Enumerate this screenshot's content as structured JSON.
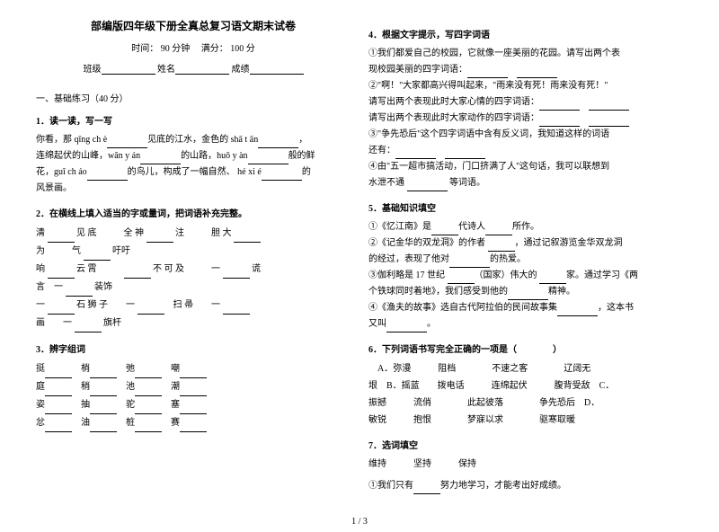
{
  "header": {
    "title": "部编版四年级下册全真总复习语文期末试卷",
    "time_label": "时间：",
    "time_value": "90 分钟",
    "score_label": "满分：",
    "score_value": "100 分",
    "class_label": "班级",
    "name_label": "姓名",
    "grade_label": "成绩"
  },
  "left": {
    "section1": "一、基础练习（40 分）",
    "q1_h": "1．读一读，写一写",
    "q1_body_a": "你看，那 qīng ch è",
    "q1_body_b": "见底的江水，金色的 shā t ān",
    "q1_body_c": "，",
    "q1_body_d": "连绵起伏的山峰，wān y án",
    "q1_body_e": "的山路，huǒ y àn",
    "q1_body_f": "般的鲜",
    "q1_body_g": "花，guī ch áo",
    "q1_body_h": "的鸟儿，构成了一幅自然、 hé xi é",
    "q1_body_i": "的",
    "q1_body_j": "风景画。",
    "q2_h": "2．在横线上填入适当的字或量词，把词语补充完整。",
    "q2_r1_a": "清",
    "q2_r1_b": "见 底",
    "q2_r1_c": "全 神",
    "q2_r1_d": "注",
    "q2_r1_e": "胆 大",
    "q2_r2_a": "为",
    "q2_r2_b": "气",
    "q2_r2_c": "吁吁",
    "q2_r3_a": "响",
    "q2_r3_b": "云 霄",
    "q2_r3_c": "不 可 及",
    "q2_r3_d": "一",
    "q2_r3_e": "谎",
    "q2_r4_a": "言",
    "q2_r4_b": "一",
    "q2_r4_c": "装饰",
    "q2_r5_a": "一",
    "q2_r5_b": "石 狮 子",
    "q2_r5_c": "一",
    "q2_r5_d": "扫 帚",
    "q2_r5_e": "一",
    "q2_r6_a": "画",
    "q2_r6_b": "一",
    "q2_r6_c": "旗杆",
    "q3_h": "3．辨字组词",
    "q3_r1": "挺",
    "q3_r1b": "梢",
    "q3_r1c": "弛",
    "q3_r1d": "嘲",
    "q3_r2": "庭",
    "q3_r2b": "稍",
    "q3_r2c": "池",
    "q3_r2d": "潮",
    "q3_r3": "姿",
    "q3_r3b": "抽",
    "q3_r3c": "驼",
    "q3_r3d": "塞",
    "q3_r4": "忿",
    "q3_r4b": "油",
    "q3_r4c": "桩",
    "q3_r4d": "赛"
  },
  "right": {
    "q4_h": "4．根据文字提示，写四字词语",
    "q4_1a": "①我们都爱自己的校园，它就像一座美丽的花园。请写出两个表",
    "q4_1b": "现校园美丽的四字词语：",
    "q4_2a": "②\"啊！\"大家都高兴得叫起来，\"雨来没有死！雨来没有死！\"",
    "q4_2b": "请写出两个表现此时大家心情的四字词语：",
    "q4_2c": "请写出两个表现此时大家动作的四字词语：",
    "q4_3a": "③\"争先恐后\"这个四字词语中含有反义词，我知道这样的词语",
    "q4_3b": "还有：",
    "q4_4a": "④由\"五一超市搞活动，门口挤满了人\"这句话，我可以联想到",
    "q4_4b": "水泄不通",
    "q4_4c": "等词语。",
    "q5_h": "5．基础知识填空",
    "q5_1a": "①《忆江南》是",
    "q5_1b": "代诗人",
    "q5_1c": "所作。",
    "q5_2a": "②《记金华的双龙洞》的作者",
    "q5_2b": "，通过记叙游览金华双龙洞",
    "q5_2c": "的经过，表现了他对",
    "q5_2d": "的热爱。",
    "q5_3a": "③伽利略是 17 世纪",
    "q5_3b": "（国家）伟大的",
    "q5_3c": "家。通过学习《两",
    "q5_3d": "个铁球同时着地》，我们感受到他的",
    "q5_3e": "精神。",
    "q5_4a": "④《渔夫的故事》选自古代阿拉伯的民间故事集",
    "q5_4b": "，这本书",
    "q5_4c": "又叫",
    "q6_h": "6．下列词语书写完全正确的一项是（　　　　）",
    "q6_a": "A．弥漫",
    "q6_a2": "阻档",
    "q6_a3": "不速之客",
    "q6_a4": "辽阔无",
    "q6_b": "垠　B．摇蓝",
    "q6_b2": "拨电话",
    "q6_b3": "连绵起伏",
    "q6_b4": "腹背受敌　C．",
    "q6_c": "振撼",
    "q6_c2": "流俏",
    "q6_c3": "此起彼落",
    "q6_c4": "争先恐后　D．",
    "q6_d": "敏锐",
    "q6_d2": "抱恨",
    "q6_d3": "梦寐以求",
    "q6_d4": "驱寒取暖",
    "q7_h": "7．选词填空",
    "q7_w1": "维持",
    "q7_w2": "坚持",
    "q7_w3": "保持",
    "q7_1": "①我们只有",
    "q7_1b": "努力地学习，才能考出好成绩。"
  },
  "page": "1 / 3"
}
